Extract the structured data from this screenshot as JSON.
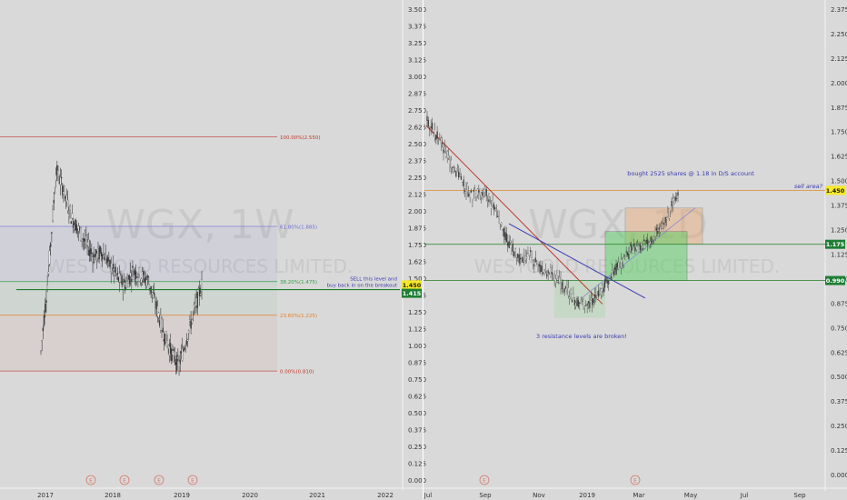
{
  "colors": {
    "background": "#d9d9d9",
    "candle": "#3a3a3a",
    "fib_100": "#c0392b",
    "fib_618": "#6c6cd9",
    "fib_382": "#2f9e44",
    "fib_236": "#e67e22",
    "fib_0": "#c0392b",
    "annotation_blue": "#3b3bb3",
    "sell_line": "#e08a2b",
    "resistance_line": "#3a8a3a",
    "downtrend_red": "#c0392b",
    "downtrend_blue": "#3b3bb3",
    "price_tag_yellow": "#f7e928",
    "price_tag_green": "#1e7e34"
  },
  "chart_data": [
    {
      "type": "candlestick",
      "watermark": "WGX, 1W",
      "watermark_sub": "WESTGOLD RESOURCES LIMITED.",
      "x_tick_labels": [
        "2017",
        "2018",
        "2019",
        "2020",
        "2021",
        "2022"
      ],
      "y_tick_labels": [
        "0.000",
        "0.125",
        "0.250",
        "0.375",
        "0.500",
        "0.625",
        "0.750",
        "0.875",
        "1.000",
        "1.125",
        "1.250",
        "1.375",
        "1.500",
        "1.625",
        "1.750",
        "1.875",
        "2.000",
        "2.125",
        "2.250",
        "2.375",
        "2.500",
        "2.625",
        "2.750",
        "2.875",
        "3.000",
        "3.125",
        "3.250",
        "3.375",
        "3.500"
      ],
      "ylim": [
        0,
        3.5
      ],
      "fib_levels": [
        {
          "label": "100.00%(2.550)",
          "value": 2.55
        },
        {
          "label": "61.80%(1.885)",
          "value": 1.885
        },
        {
          "label": "38.20%(1.475)",
          "value": 1.475
        },
        {
          "label": "23.60%(1.225)",
          "value": 1.225
        },
        {
          "label": "0.00%(0.810)",
          "value": 0.81
        }
      ],
      "annotations": [
        "SELL this level and",
        "buy back in on the breakout"
      ],
      "price_tags": [
        {
          "label": "1.450",
          "value": 1.45,
          "color": "yellow"
        },
        {
          "label": "1.415",
          "value": 1.415,
          "color": "green"
        }
      ],
      "event_markers": [
        "E",
        "E",
        "E",
        "E"
      ],
      "closes_approx": [
        0.95,
        1.55,
        2.3,
        2.15,
        1.95,
        1.85,
        1.75,
        1.65,
        1.7,
        1.6,
        1.5,
        1.45,
        1.55,
        1.52,
        1.48,
        1.3,
        1.1,
        0.95,
        0.85,
        1.05,
        1.25,
        1.45
      ]
    },
    {
      "type": "candlestick",
      "watermark": "WGX, 1D",
      "watermark_sub": "WESTGOLD RESOURCES LIMITED.",
      "x_tick_labels": [
        "Jul",
        "Sep",
        "Nov",
        "2019",
        "Mar",
        "May",
        "Jul",
        "Sep"
      ],
      "y_tick_labels": [
        "0.000",
        "0.125",
        "0.250",
        "0.375",
        "0.500",
        "0.625",
        "0.750",
        "0.875",
        "1.000",
        "1.125",
        "1.250",
        "1.375",
        "1.500",
        "1.625",
        "1.750",
        "1.875",
        "2.000",
        "2.125",
        "2.250",
        "2.375"
      ],
      "ylim": [
        0,
        2.375
      ],
      "horizontal_levels": [
        {
          "label": "sell area?",
          "value": 1.45
        },
        {
          "label": "1.175",
          "value": 1.175
        },
        {
          "label": "0.990",
          "value": 0.99
        }
      ],
      "annotations": [
        "bought 2525 shares @ 1.18 in D/S account",
        "sell area?",
        "3 resistance levels are broken!"
      ],
      "price_tags": [
        {
          "label": "1.450",
          "value": 1.45,
          "color": "yellow"
        },
        {
          "label": "1.175",
          "value": 1.175,
          "color": "green"
        },
        {
          "label": "0.990",
          "value": 0.99,
          "color": "green"
        }
      ],
      "event_markers": [
        "E",
        "E"
      ],
      "closes_approx": [
        1.8,
        1.72,
        1.6,
        1.5,
        1.42,
        1.45,
        1.35,
        1.2,
        1.1,
        1.12,
        1.05,
        1.02,
        0.96,
        0.88,
        0.86,
        0.92,
        1.0,
        1.08,
        1.15,
        1.17,
        1.22,
        1.3,
        1.45
      ]
    }
  ]
}
